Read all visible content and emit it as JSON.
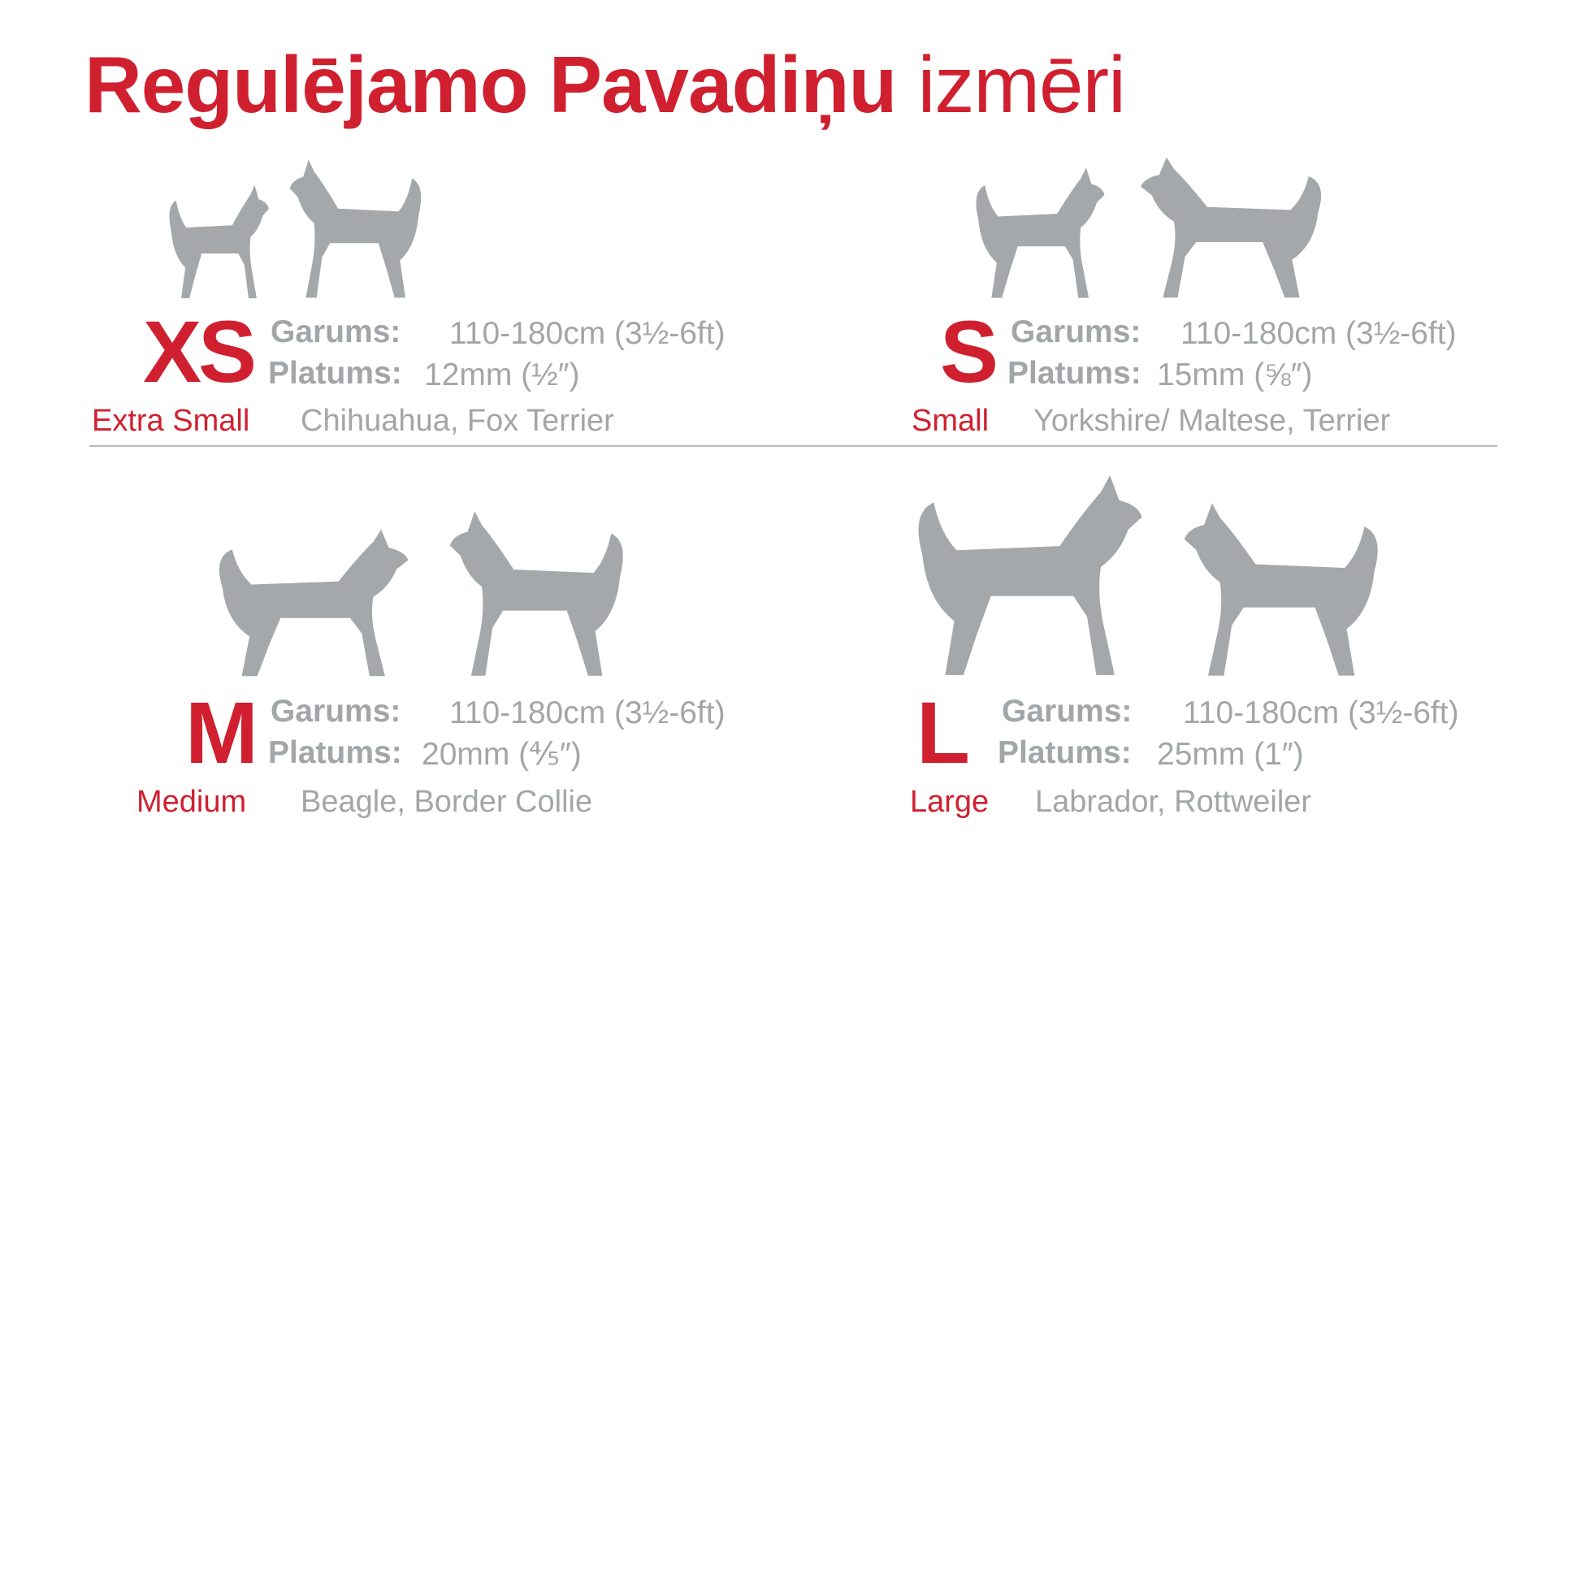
{
  "title": {
    "bold": "Regulējamo Pavadiņu",
    "light": "izmēri"
  },
  "colors": {
    "accent": "#d0202f",
    "text_gray": "#a3a6a8",
    "silhouette": "#a5a8aa"
  },
  "labels": {
    "length": "Garums:",
    "width": "Platums:"
  },
  "sizes": [
    {
      "code": "XS",
      "name": "Extra Small",
      "length": "110-180cm (3½-6ft)",
      "width": "12mm (½″)",
      "breeds": "Chihuahua, Fox Terrier",
      "icons": [
        "chihuahua-silhouette-icon",
        "fox-terrier-silhouette-icon"
      ]
    },
    {
      "code": "S",
      "name": "Small",
      "length": "110-180cm (3½-6ft)",
      "width": "15mm (⅝″)",
      "breeds": "Yorkshire/ Maltese, Terrier",
      "icons": [
        "yorkshire-silhouette-icon",
        "scottish-terrier-silhouette-icon"
      ]
    },
    {
      "code": "M",
      "name": "Medium",
      "length": "110-180cm (3½-6ft)",
      "width": "20mm (⅘″)",
      "breeds": "Beagle, Border Collie",
      "icons": [
        "beagle-silhouette-icon",
        "border-collie-silhouette-icon"
      ]
    },
    {
      "code": "L",
      "name": "Large",
      "length": "110-180cm (3½-6ft)",
      "width": "25mm (1″)",
      "breeds": "Labrador, Rottweiler",
      "icons": [
        "labrador-silhouette-icon",
        "rottweiler-silhouette-icon"
      ]
    }
  ]
}
